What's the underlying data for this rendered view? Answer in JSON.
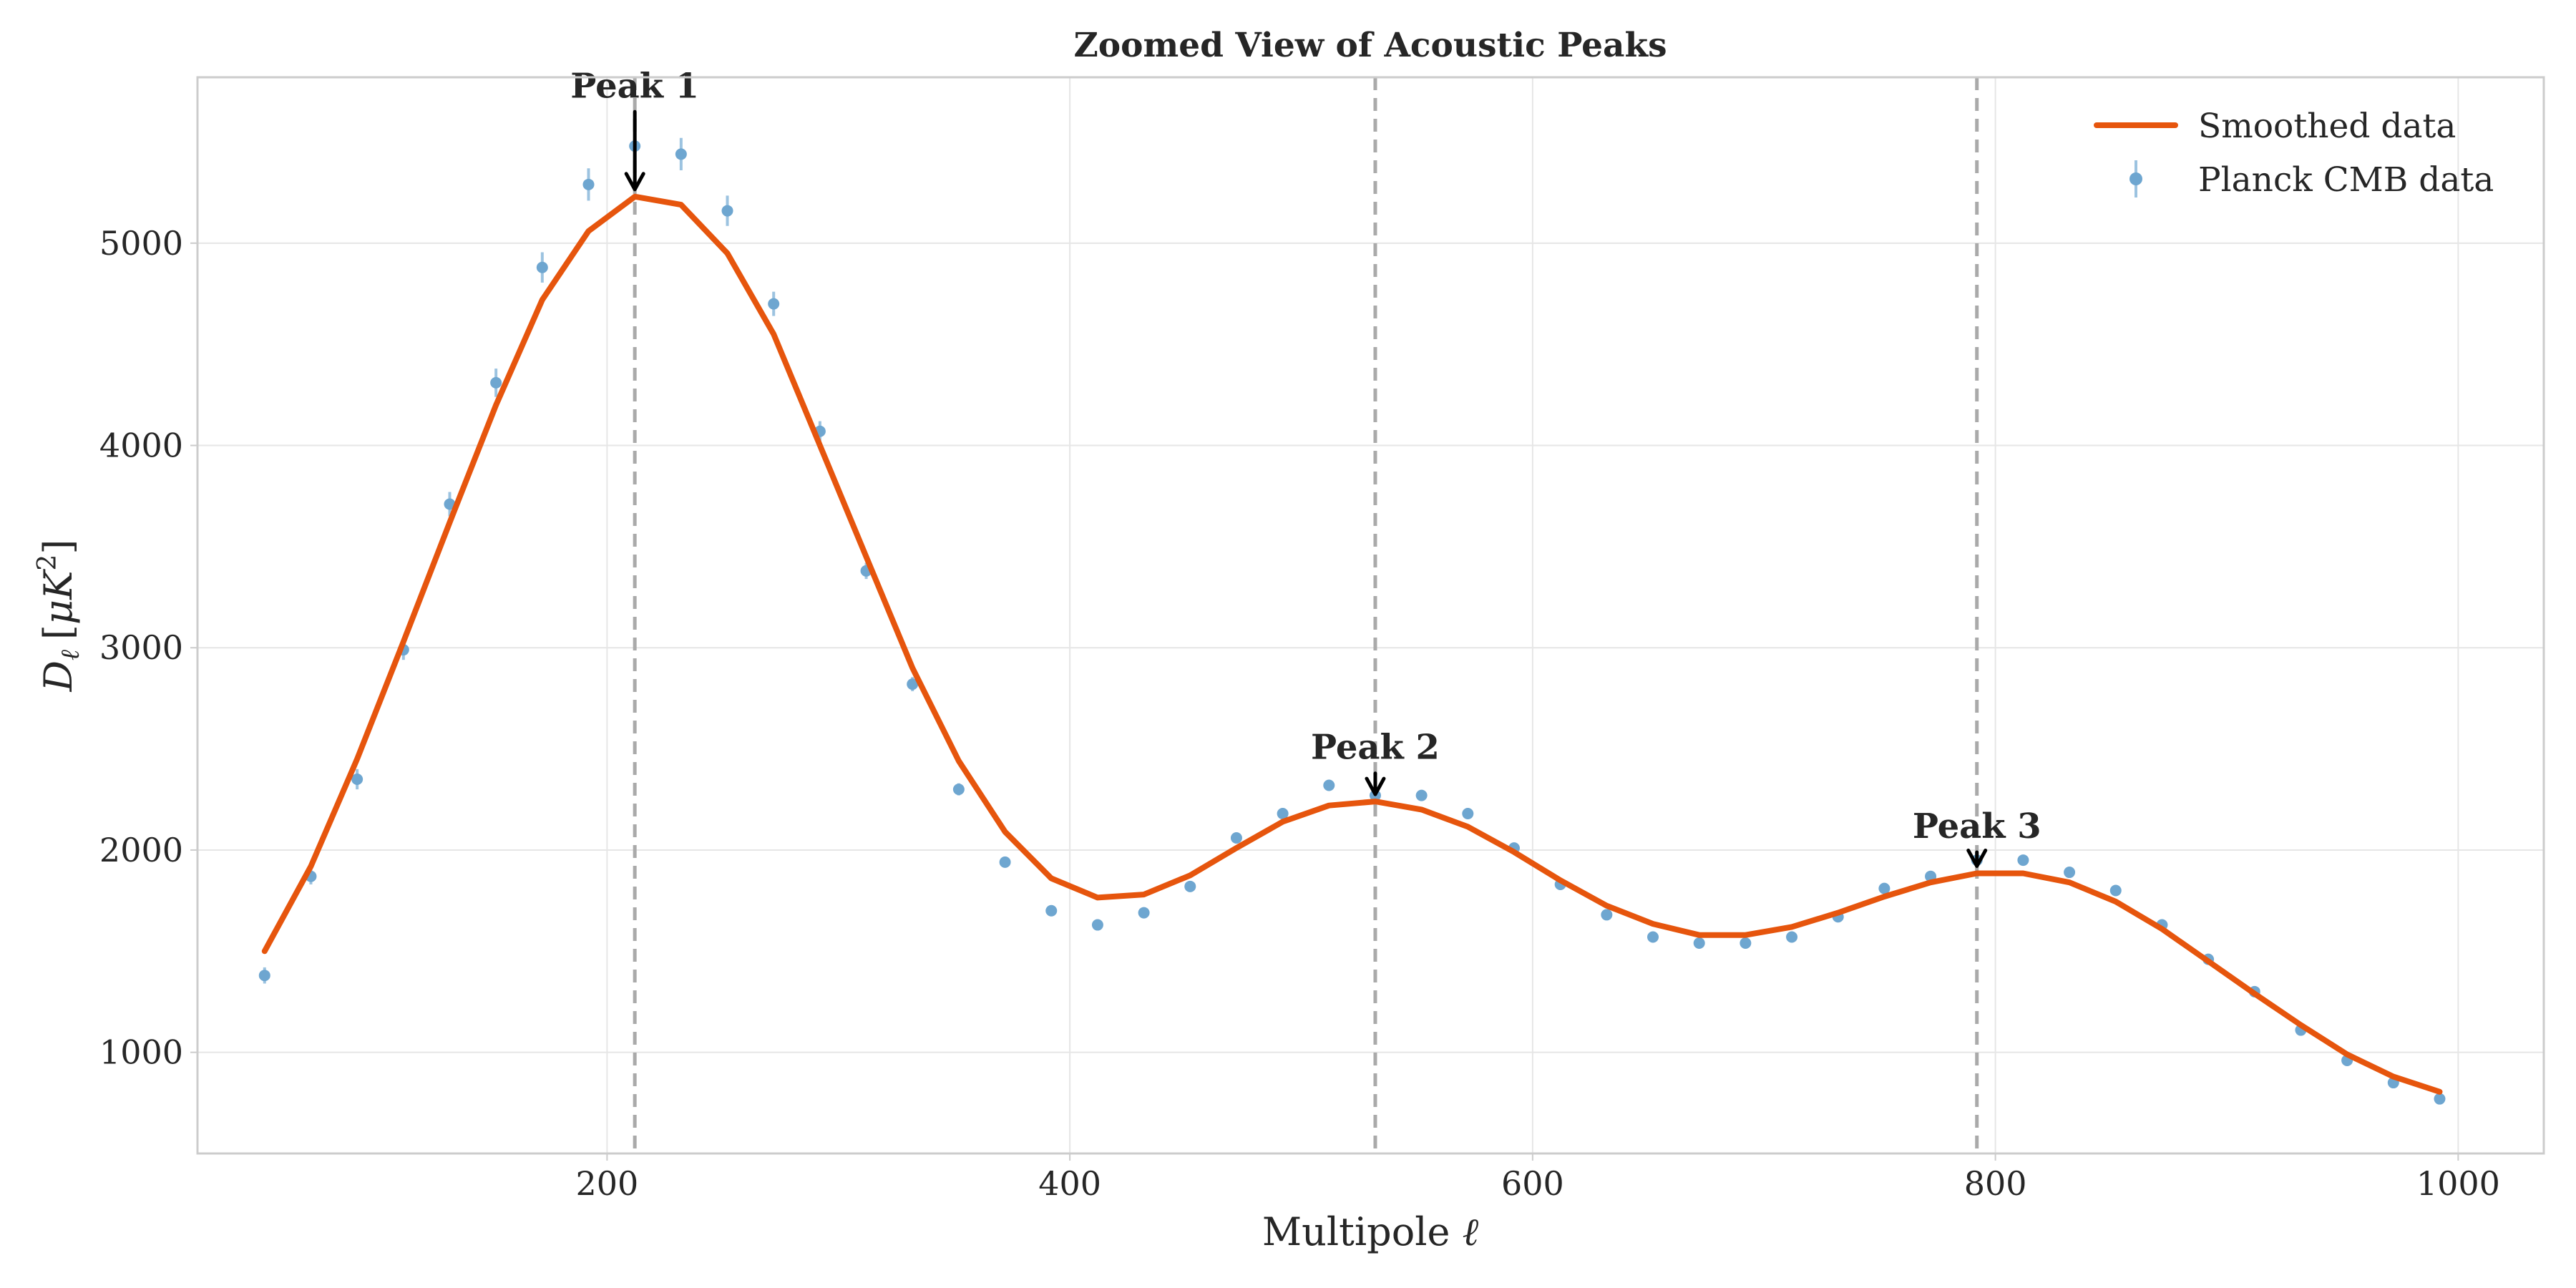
{
  "chart_data": {
    "type": "line",
    "title": "Zoomed View of Acoustic Peaks",
    "xlabel": "Multipole",
    "xlabel_symbol": "ℓ",
    "ylabel_symbol": "D",
    "ylabel_subscript": "ℓ",
    "ylabel_units_open": "[",
    "ylabel_units_mu": "μ",
    "ylabel_units_k": "K",
    "ylabel_units_exp": "2",
    "ylabel_units_close": "]",
    "xlim": [
      23,
      1037
    ],
    "ylim": [
      500,
      5820
    ],
    "x_ticks": [
      200,
      400,
      600,
      800,
      1000
    ],
    "x_tick_labels": [
      "200",
      "400",
      "600",
      "800",
      "1000"
    ],
    "y_ticks": [
      1000,
      2000,
      3000,
      4000,
      5000
    ],
    "y_tick_labels": [
      "1000",
      "2000",
      "3000",
      "4000",
      "5000"
    ],
    "grid": true,
    "legend_position": "top-right",
    "series": [
      {
        "name": "Smoothed data",
        "kind": "line",
        "color": "#e6550d",
        "x": [
          52,
          72,
          92,
          112,
          132,
          152,
          172,
          192,
          212,
          232,
          252,
          272,
          292,
          312,
          332,
          352,
          372,
          392,
          412,
          432,
          452,
          472,
          492,
          512,
          532,
          552,
          572,
          592,
          612,
          632,
          652,
          672,
          692,
          712,
          732,
          752,
          772,
          792,
          812,
          832,
          852,
          872,
          892,
          912,
          932,
          952,
          972,
          992
        ],
        "y": [
          1500,
          1920,
          2450,
          3030,
          3620,
          4200,
          4720,
          5060,
          5230,
          5190,
          4950,
          4550,
          4000,
          3450,
          2900,
          2440,
          2090,
          1860,
          1765,
          1780,
          1875,
          2010,
          2140,
          2220,
          2240,
          2200,
          2115,
          1990,
          1850,
          1725,
          1635,
          1580,
          1580,
          1620,
          1690,
          1770,
          1840,
          1885,
          1885,
          1840,
          1745,
          1610,
          1450,
          1290,
          1135,
          990,
          880,
          805
        ]
      },
      {
        "name": "Planck CMB data",
        "kind": "scatter_errorbar",
        "color": "#6ea6d0",
        "x": [
          52,
          72,
          92,
          112,
          132,
          152,
          172,
          192,
          212,
          232,
          252,
          272,
          292,
          312,
          332,
          352,
          372,
          392,
          412,
          432,
          452,
          472,
          492,
          512,
          532,
          552,
          572,
          592,
          612,
          632,
          652,
          672,
          692,
          712,
          732,
          752,
          772,
          792,
          812,
          832,
          852,
          872,
          892,
          912,
          932,
          952,
          972,
          992
        ],
        "y": [
          1380,
          1870,
          2350,
          2990,
          3710,
          4310,
          4880,
          5290,
          5480,
          5440,
          5160,
          4700,
          4070,
          3380,
          2820,
          2300,
          1940,
          1700,
          1630,
          1690,
          1820,
          2060,
          2180,
          2320,
          2270,
          2270,
          2180,
          2010,
          1830,
          1680,
          1570,
          1540,
          1540,
          1570,
          1670,
          1810,
          1870,
          1950,
          1950,
          1890,
          1800,
          1630,
          1460,
          1300,
          1110,
          960,
          850,
          770
        ],
        "err": [
          40,
          40,
          50,
          50,
          60,
          70,
          75,
          80,
          85,
          80,
          75,
          60,
          50,
          40,
          35,
          30,
          25,
          20,
          20,
          20,
          20,
          20,
          20,
          20,
          20,
          20,
          20,
          20,
          20,
          20,
          20,
          20,
          20,
          20,
          20,
          20,
          20,
          20,
          20,
          20,
          20,
          20,
          20,
          20,
          20,
          20,
          20,
          20
        ]
      }
    ],
    "peak_markers": [
      {
        "label": "Peak 1",
        "x": 212,
        "y": 5230,
        "label_y": 5720
      },
      {
        "label": "Peak 2",
        "x": 532,
        "y": 2240,
        "label_y": 2450
      },
      {
        "label": "Peak 3",
        "x": 792,
        "y": 1885,
        "label_y": 2060
      }
    ]
  }
}
